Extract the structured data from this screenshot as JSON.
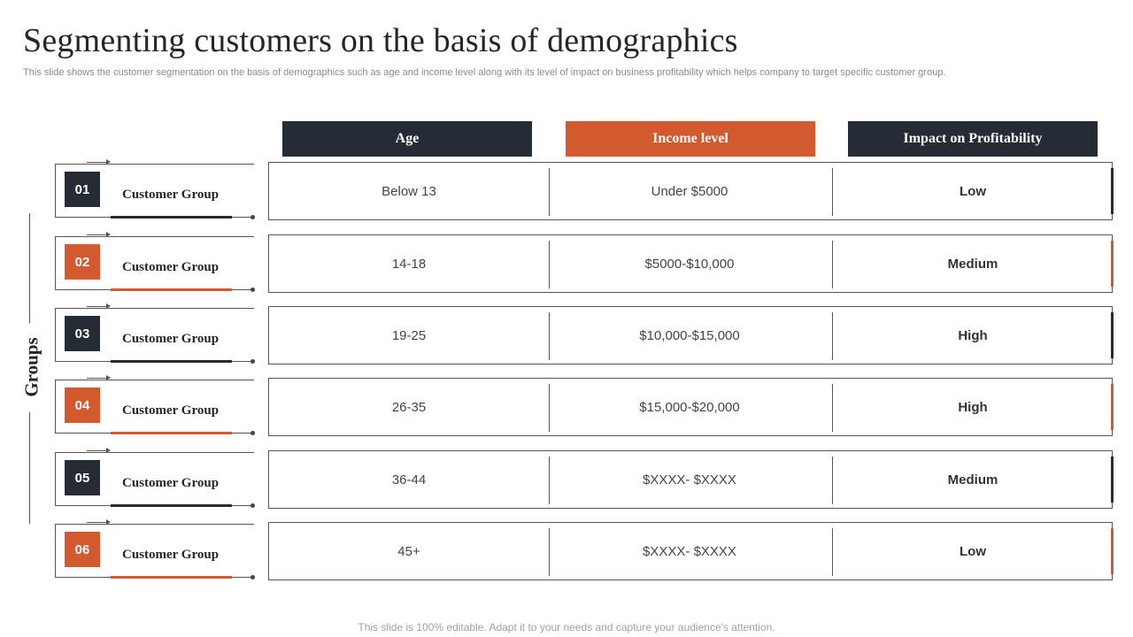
{
  "title": "Segmenting customers on the basis of demographics",
  "subtitle": "This slide shows the customer segmentation on the basis of demographics such as age and income level along with its level of impact on business profitability which helps company to target specific customer group.",
  "headers": {
    "age": "Age",
    "income": "Income level",
    "impact": "Impact on Profitability"
  },
  "groups_label": "Groups",
  "rows": [
    {
      "num": "01",
      "label": "Customer Group",
      "age": "Below 13",
      "income": "Under $5000",
      "impact": "Low"
    },
    {
      "num": "02",
      "label": "Customer Group",
      "age": "14-18",
      "income": "$5000-$10,000",
      "impact": "Medium"
    },
    {
      "num": "03",
      "label": "Customer Group",
      "age": "19-25",
      "income": "$10,000-$15,000",
      "impact": "High"
    },
    {
      "num": "04",
      "label": "Customer Group",
      "age": "26-35",
      "income": "$15,000-$20,000",
      "impact": "High"
    },
    {
      "num": "05",
      "label": "Customer Group",
      "age": "36-44",
      "income": "$XXXX-  $XXXX",
      "impact": "Medium"
    },
    {
      "num": "06",
      "label": "Customer Group",
      "age": "45+",
      "income": "$XXXX-  $XXXX",
      "impact": "Low"
    }
  ],
  "footer": "This slide is 100% editable. Adapt it to your needs and capture your audience's attention.",
  "colors": {
    "dark": "#262c35",
    "accent": "#d35a2f"
  }
}
